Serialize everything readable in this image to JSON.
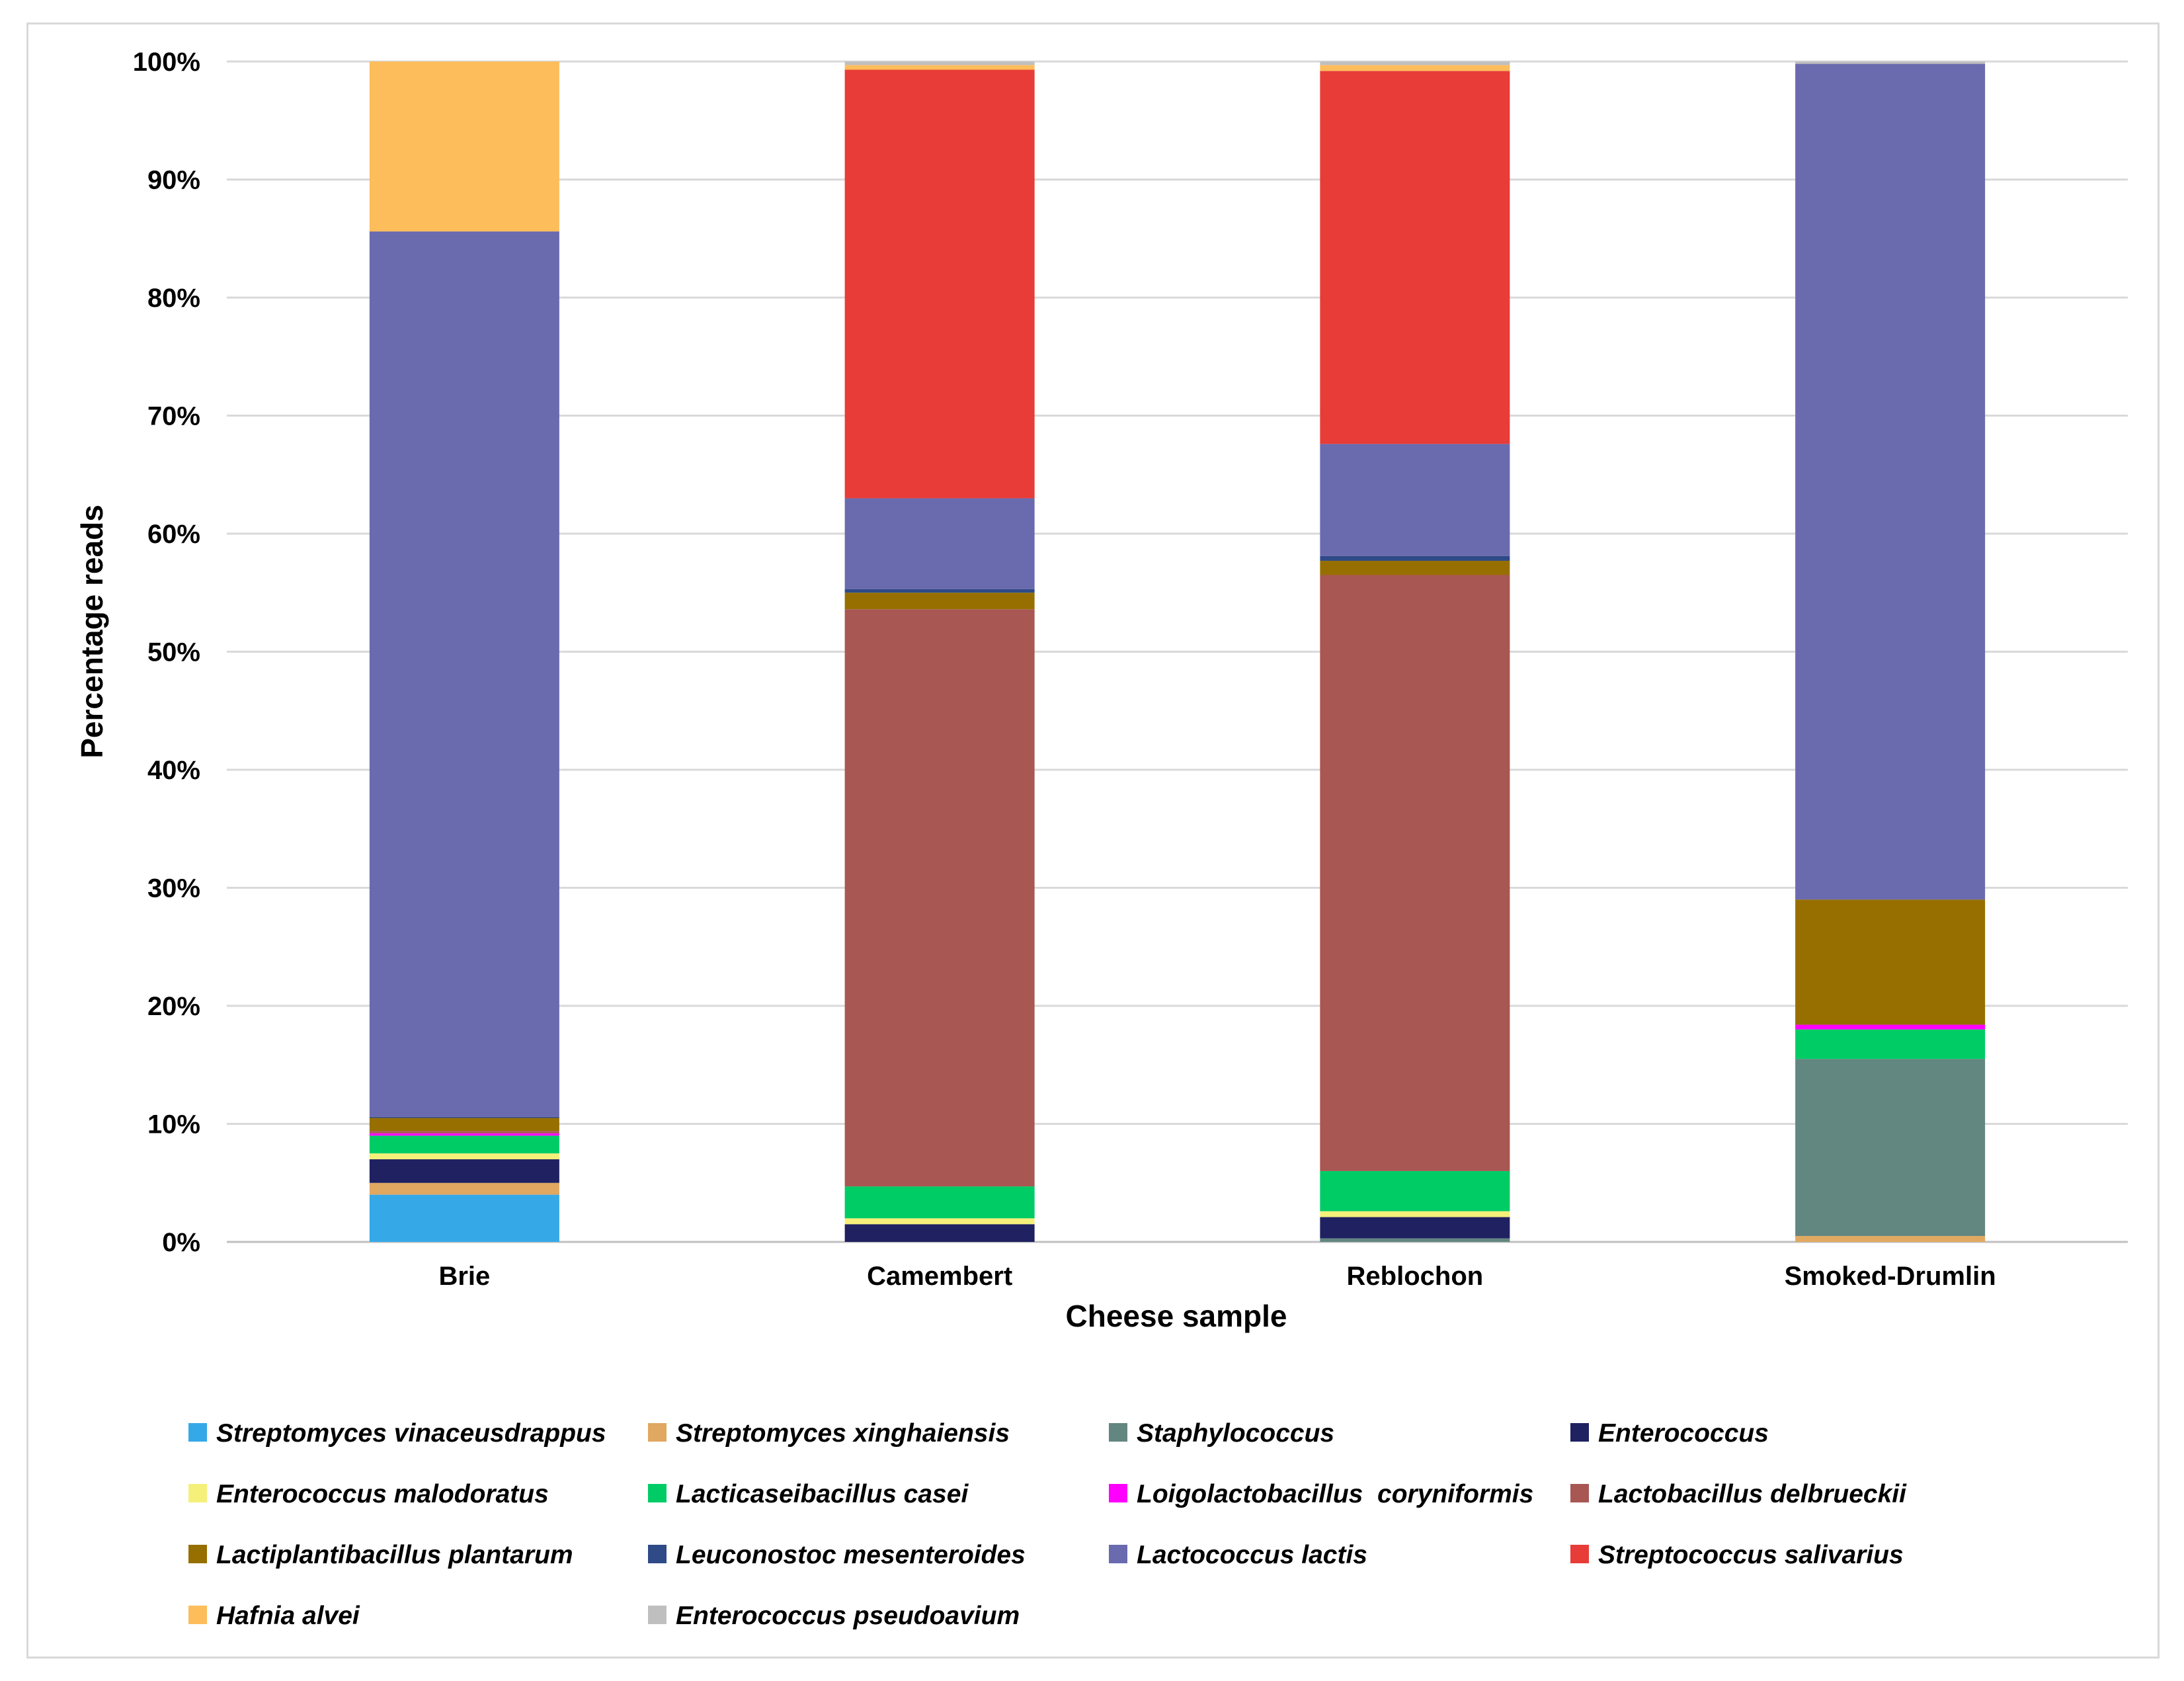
{
  "chart_data": {
    "type": "bar",
    "stacked": true,
    "title": "",
    "xlabel": "Cheese sample",
    "ylabel": "Percentage reads",
    "ylim": [
      0,
      100
    ],
    "y_ticks": [
      "0%",
      "10%",
      "20%",
      "30%",
      "40%",
      "50%",
      "60%",
      "70%",
      "80%",
      "90%",
      "100%"
    ],
    "y_tick_values": [
      0,
      10,
      20,
      30,
      40,
      50,
      60,
      70,
      80,
      90,
      100
    ],
    "grid": true,
    "legend_position": "bottom",
    "categories": [
      "Brie",
      "Camembert",
      "Reblochon",
      "Smoked-Drumlin"
    ],
    "series": [
      {
        "name": "Streptomyces vinaceusdrappus",
        "color": "#35a9e8",
        "values": [
          4.0,
          0,
          0,
          0
        ]
      },
      {
        "name": "Streptomyces xinghaiensis",
        "color": "#e0a860",
        "values": [
          1.0,
          0,
          0,
          0.5
        ]
      },
      {
        "name": "Staphylococcus",
        "color": "#628680",
        "values": [
          0,
          0,
          0.3,
          15.0
        ]
      },
      {
        "name": "Enterococcus",
        "color": "#1f2160",
        "values": [
          2.0,
          1.5,
          1.8,
          0
        ]
      },
      {
        "name": "Enterococcus malodoratus",
        "color": "#f5f07a",
        "values": [
          0.5,
          0.5,
          0.5,
          0
        ]
      },
      {
        "name": "Lacticaseibacillus casei",
        "color": "#00cc66",
        "values": [
          1.5,
          2.7,
          3.4,
          2.5
        ]
      },
      {
        "name": "Loigolactobacillus  coryniformis",
        "color": "#ff00ff",
        "values": [
          0.2,
          0,
          0,
          0.4
        ]
      },
      {
        "name": "Lactobacillus delbrueckii",
        "color": "#a85752",
        "values": [
          0.2,
          48.9,
          50.5,
          0
        ]
      },
      {
        "name": "Lactiplantibacillus plantarum",
        "color": "#966f00",
        "values": [
          1.1,
          1.4,
          1.2,
          10.6
        ]
      },
      {
        "name": "Leuconostoc mesenteroides",
        "color": "#2e4a87",
        "values": [
          0.1,
          0.3,
          0.4,
          0
        ]
      },
      {
        "name": "Lactococcus lactis",
        "color": "#6a6aae",
        "values": [
          75.0,
          7.7,
          9.5,
          70.8
        ]
      },
      {
        "name": "Streptococcus salivarius",
        "color": "#e83c38",
        "values": [
          0,
          36.3,
          31.6,
          0
        ]
      },
      {
        "name": "Hafnia alvei",
        "color": "#fdbd5b",
        "values": [
          14.4,
          0.4,
          0.5,
          0
        ]
      },
      {
        "name": "Enterococcus pseudoavium",
        "color": "#bfbfbf",
        "values": [
          0,
          0.3,
          0.3,
          0.2
        ]
      }
    ]
  }
}
